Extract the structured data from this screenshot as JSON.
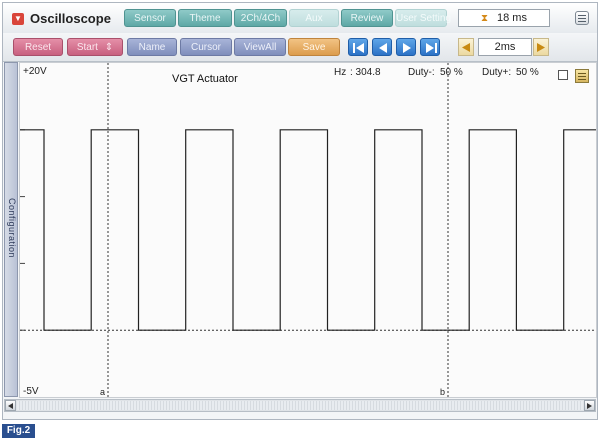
{
  "app": {
    "title": "Oscilloscope"
  },
  "tabs": [
    {
      "label": "Sensor",
      "enabled": true
    },
    {
      "label": "Theme",
      "enabled": true
    },
    {
      "label": "2Ch/4Ch",
      "enabled": true
    },
    {
      "label": "Aux",
      "enabled": false
    },
    {
      "label": "Review",
      "enabled": true
    },
    {
      "label": "User Setting",
      "enabled": false
    }
  ],
  "readout": {
    "time": "18 ms"
  },
  "toolbar": {
    "reset": "Reset",
    "start": "Start",
    "start_icon": "⇕",
    "name": "Name",
    "cursor": "Cursor",
    "viewall": "ViewAll",
    "save": "Save",
    "timediv": "2ms"
  },
  "sidebar": {
    "configuration_label": "Configuration"
  },
  "plot": {
    "title": "VGT Actuator",
    "ymax_label": "+20V",
    "ymin_label": "-5V",
    "hz_label": "Hz",
    "hz_value": ": 304.8",
    "duty_minus_label": "Duty-:",
    "duty_minus_value": "50 %",
    "duty_plus_label": "Duty+:",
    "duty_plus_value": "50 %",
    "cursor_a_label": "a",
    "cursor_b_label": "b"
  },
  "figure": {
    "label": "Fig.2"
  },
  "colors": {
    "tab": "#5ea8a6",
    "reset": "#c8607f",
    "blue_button": "#7f8ebc",
    "save": "#dc9c4c",
    "nav": "#2c72c6",
    "figure_label_bg": "#2a4f8f",
    "trace": "#222222"
  },
  "chart_data": {
    "type": "line",
    "title": "VGT Actuator",
    "y_axis": {
      "max": 20,
      "min": -5,
      "unit": "V",
      "max_label": "+20V",
      "min_label": "-5V"
    },
    "time_per_div": "2ms",
    "signal": "square",
    "frequency_hz": 304.8,
    "duty_minus_percent": 50,
    "duty_plus_percent": 50,
    "high_level_divisions_from_top": 1,
    "low_level_divisions_from_top": 4,
    "cursors": [
      "a",
      "b"
    ],
    "grid": true
  }
}
